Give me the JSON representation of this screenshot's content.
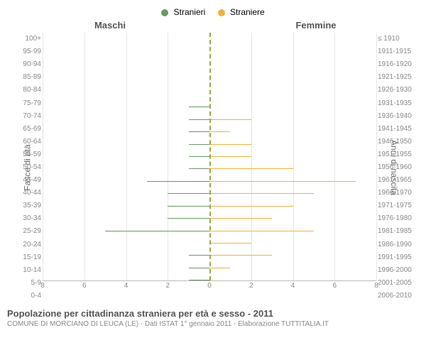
{
  "legend": {
    "male": {
      "label": "Stranieri",
      "color": "#6a9866"
    },
    "female": {
      "label": "Straniere",
      "color": "#f0b13c"
    }
  },
  "panel_titles": {
    "left": "Maschi",
    "right": "Femmine"
  },
  "y_axis_left_label": "Fasce di età",
  "y_axis_right_label": "Anni di nascita",
  "x_axis": {
    "max": 8,
    "ticks": [
      0,
      2,
      4,
      6,
      8
    ]
  },
  "grid_color": "#E6E6E6",
  "center_line_color": "#9aa34a",
  "bar_gap_ratio": 0.35,
  "rows": [
    {
      "age": "100+",
      "birth": "≤ 1910",
      "m": 0,
      "f": 0
    },
    {
      "age": "95-99",
      "birth": "1911-1915",
      "m": 0,
      "f": 0
    },
    {
      "age": "90-94",
      "birth": "1916-1920",
      "m": 0,
      "f": 0
    },
    {
      "age": "85-89",
      "birth": "1921-1925",
      "m": 0,
      "f": 0
    },
    {
      "age": "80-84",
      "birth": "1926-1930",
      "m": 0,
      "f": 0
    },
    {
      "age": "75-79",
      "birth": "1931-1935",
      "m": 0,
      "f": 0
    },
    {
      "age": "70-74",
      "birth": "1936-1940",
      "m": 1,
      "f": 0
    },
    {
      "age": "65-69",
      "birth": "1941-1945",
      "m": 1,
      "f": 2
    },
    {
      "age": "60-64",
      "birth": "1946-1950",
      "m": 1,
      "f": 1
    },
    {
      "age": "55-59",
      "birth": "1951-1955",
      "m": 1,
      "f": 2
    },
    {
      "age": "50-54",
      "birth": "1956-1960",
      "m": 1,
      "f": 2
    },
    {
      "age": "45-49",
      "birth": "1961-1965",
      "m": 1,
      "f": 4
    },
    {
      "age": "40-44",
      "birth": "1966-1970",
      "m": 3,
      "f": 7
    },
    {
      "age": "35-39",
      "birth": "1971-1975",
      "m": 2,
      "f": 5
    },
    {
      "age": "30-34",
      "birth": "1976-1980",
      "m": 2,
      "f": 4
    },
    {
      "age": "25-29",
      "birth": "1981-1985",
      "m": 2,
      "f": 3
    },
    {
      "age": "20-24",
      "birth": "1986-1990",
      "m": 5,
      "f": 5
    },
    {
      "age": "15-19",
      "birth": "1991-1995",
      "m": 0,
      "f": 2
    },
    {
      "age": "10-14",
      "birth": "1996-2000",
      "m": 1,
      "f": 3
    },
    {
      "age": "5-9",
      "birth": "2001-2005",
      "m": 1,
      "f": 1
    },
    {
      "age": "0-4",
      "birth": "2006-2010",
      "m": 1,
      "f": 0
    }
  ],
  "footer": {
    "line1": "Popolazione per cittadinanza straniera per età e sesso - 2011",
    "line2": "COMUNE DI MORCIANO DI LEUCA (LE) - Dati ISTAT 1° gennaio 2011 - Elaborazione TUTTITALIA.IT"
  }
}
